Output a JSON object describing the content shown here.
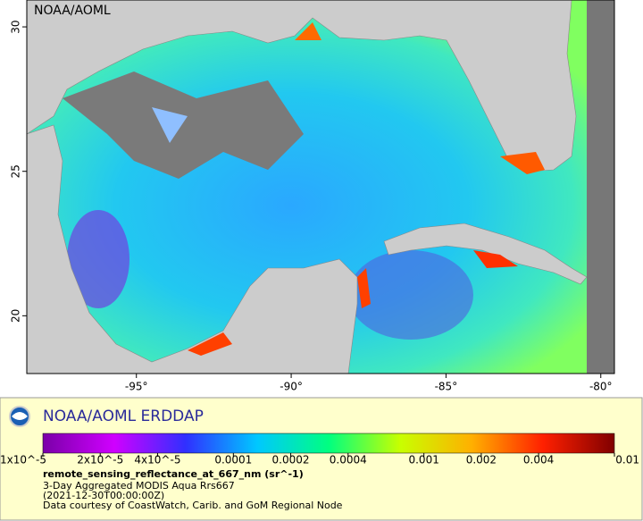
{
  "map": {
    "title": "NOAA/AOML",
    "xlim": [
      -98.54,
      -79.56
    ],
    "ylim": [
      18.0,
      30.93
    ],
    "xticks": [
      {
        "value": -95,
        "label": "-95°"
      },
      {
        "value": -90,
        "label": "-90°"
      },
      {
        "value": -85,
        "label": "-85°"
      },
      {
        "value": -80,
        "label": "-80°"
      }
    ],
    "yticks": [
      20,
      25,
      30
    ]
  },
  "legend": {
    "title": "NOAA/AOML ERDDAP",
    "colorbar": {
      "log_scale": true,
      "lim": [
        1e-05,
        0.01
      ],
      "colors": [
        "#7a00a8",
        "#d000ff",
        "#3030ff",
        "#00c8ff",
        "#00ff80",
        "#c8ff00",
        "#ffb000",
        "#ff2000",
        "#800000"
      ],
      "ticks": [
        {
          "value": 1e-05,
          "label": "1x10^-5"
        },
        {
          "value": 2e-05,
          "label": "2x10^-5"
        },
        {
          "value": 4e-05,
          "label": "4x10^-5"
        },
        0.0001,
        0.0002,
        0.0004,
        0.001,
        0.002,
        0.004,
        0.01
      ]
    },
    "variable": "remote_sensing_reflectance_at_667_nm (sr^-1)",
    "lines": [
      "3-Day Aggregated MODIS Aqua Rrs667",
      "(2021-12-30T00:00:00Z)",
      "Data courtesy of CoastWatch, Carib. and GoM Regional Node"
    ]
  }
}
